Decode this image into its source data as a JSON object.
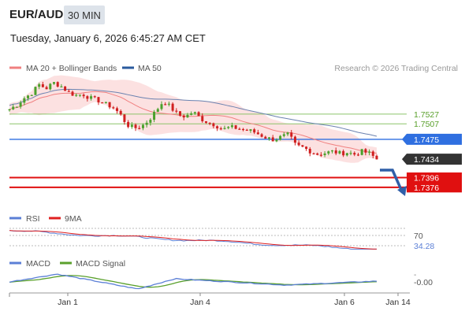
{
  "header": {
    "symbol": "EUR/AUD",
    "timeframe": "30 MIN",
    "datetime": "Tuesday, January 6, 2026 6:45:27 AM CET"
  },
  "legend": {
    "ma20_label": "MA 20 + Bollinger Bands",
    "ma50_label": "MA 50",
    "copyright": "Research © 2026 Trading Central",
    "ma20_color": "#f08080",
    "ma50_color": "#2a5a9e"
  },
  "rsi_panel": {
    "rsi_label": "RSI",
    "ma9_label": "9MA",
    "level_label": "70",
    "value_label": "34.28",
    "rsi_color": "#5b7fd6",
    "ma9_color": "#e02020"
  },
  "macd_panel": {
    "macd_label": "MACD",
    "signal_label": "MACD Signal",
    "value_label": "-0.00",
    "macd_color": "#5b7fd6",
    "signal_color": "#5aa02c"
  },
  "chart_data": {
    "type": "candlestick",
    "y_range": [
      1.734,
      1.76
    ],
    "x_ticks": [
      "Jan 1",
      "Jan 4",
      "Jan 6",
      "Jan 14"
    ],
    "levels": [
      {
        "value": 1.7527,
        "label": "1.7527",
        "kind": "resistance",
        "color": "#8cc46a"
      },
      {
        "value": 1.7507,
        "label": "1.7507",
        "kind": "resistance",
        "color": "#8cc46a"
      },
      {
        "value": 1.7475,
        "label": "1.7475",
        "kind": "pivot",
        "color": "#2f6fe0"
      },
      {
        "value": 1.7434,
        "label": "1.7434",
        "kind": "last",
        "color": "#333333"
      },
      {
        "value": 1.7396,
        "label": "1.7396",
        "kind": "target",
        "color": "#e01010"
      },
      {
        "value": 1.7376,
        "label": "1.7376",
        "kind": "target",
        "color": "#e01010"
      }
    ],
    "close_path": [
      1.7537,
      1.7546,
      1.756,
      1.757,
      1.7588,
      1.758,
      1.7592,
      1.7585,
      1.7572,
      1.7566,
      1.7568,
      1.756,
      1.7556,
      1.7548,
      1.7542,
      1.7528,
      1.7505,
      1.7498,
      1.7502,
      1.7515,
      1.7535,
      1.7555,
      1.754,
      1.7525,
      1.7522,
      1.7532,
      1.7518,
      1.751,
      1.7505,
      1.7495,
      1.75,
      1.7498,
      1.7494,
      1.7492,
      1.7485,
      1.7478,
      1.7474,
      1.748,
      1.7485,
      1.7462,
      1.7458,
      1.745,
      1.7444,
      1.7447,
      1.745,
      1.7446,
      1.7448,
      1.7444,
      1.745,
      1.7446,
      1.7434
    ]
  }
}
